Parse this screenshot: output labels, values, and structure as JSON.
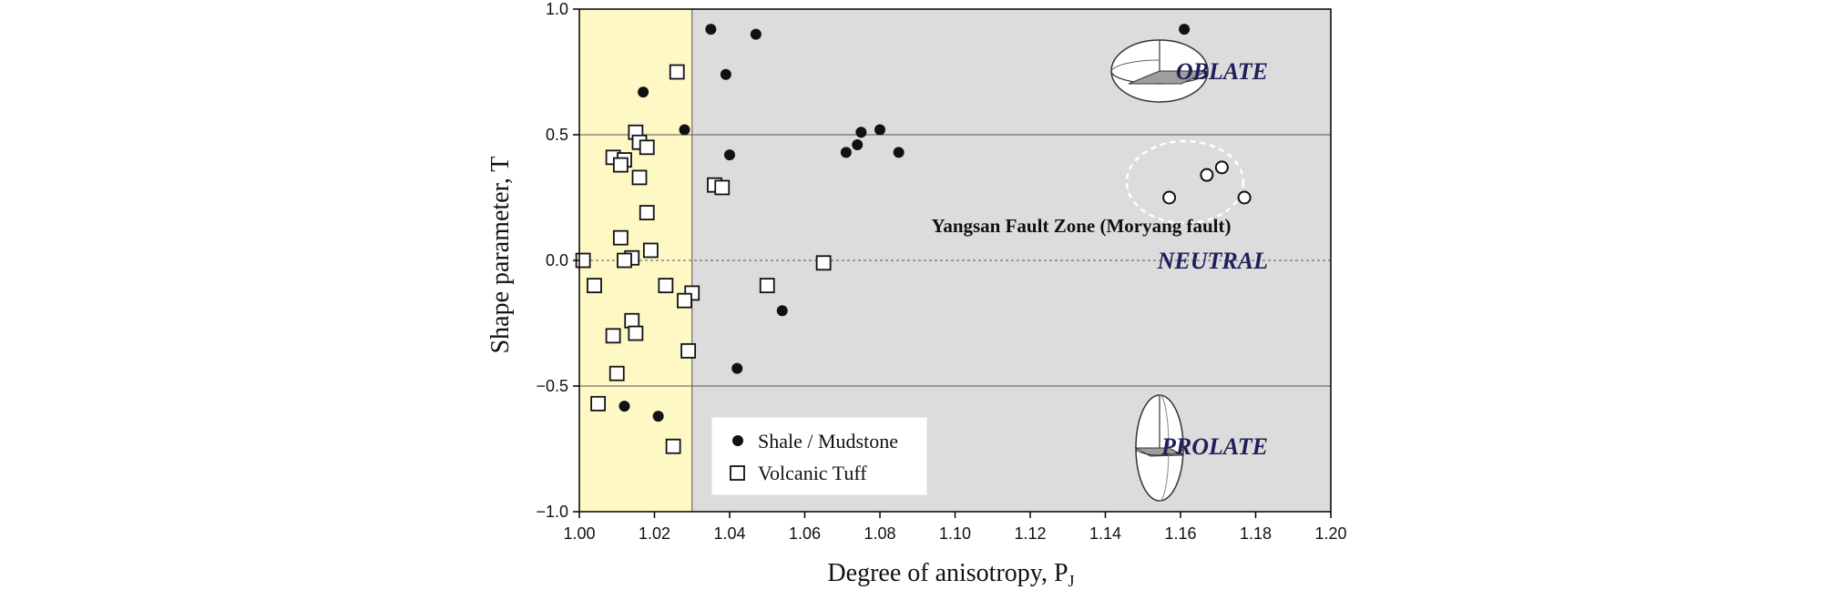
{
  "chart_data": {
    "type": "scatter",
    "xlabel": "Degree of anisotropy, P",
    "xlabel_sub": "J",
    "ylabel": "Shape parameter, T",
    "xlim": [
      1.0,
      1.2
    ],
    "ylim": [
      -1.0,
      1.0
    ],
    "x_ticks": [
      "1.00",
      "1.02",
      "1.04",
      "1.06",
      "1.08",
      "1.10",
      "1.12",
      "1.14",
      "1.16",
      "1.18",
      "1.20"
    ],
    "y_ticks": [
      "1.0",
      "0.5",
      "0.0",
      "−0.5",
      "−1.0"
    ],
    "y_tick_values": [
      1.0,
      0.5,
      0.0,
      -0.5,
      -1.0
    ],
    "highlight_band": {
      "x_from": 1.0,
      "x_to": 1.03,
      "color": "#fdf8c4"
    },
    "background_color": "#dcdcdc",
    "reference_lines": [
      {
        "y": 0.5,
        "style": "solid"
      },
      {
        "y": 0.0,
        "style": "dashed"
      },
      {
        "y": -0.5,
        "style": "solid"
      }
    ],
    "zone_labels": {
      "oblate": "OBLATE",
      "neutral": "NEUTRAL",
      "prolate": "PROLATE"
    },
    "annotation": "Yangsan Fault Zone (Moryang fault)",
    "legend_placement": "bottom-center",
    "series": [
      {
        "name": "Shale / Mudstone",
        "marker": "filled-circle",
        "points": [
          [
            1.035,
            0.92
          ],
          [
            1.047,
            0.9
          ],
          [
            1.039,
            0.74
          ],
          [
            1.017,
            0.67
          ],
          [
            1.028,
            0.52
          ],
          [
            1.04,
            0.42
          ],
          [
            1.071,
            0.43
          ],
          [
            1.074,
            0.46
          ],
          [
            1.075,
            0.51
          ],
          [
            1.08,
            0.52
          ],
          [
            1.085,
            0.43
          ],
          [
            1.161,
            0.92
          ],
          [
            1.054,
            -0.2
          ],
          [
            1.042,
            -0.43
          ],
          [
            1.012,
            -0.58
          ],
          [
            1.021,
            -0.62
          ]
        ]
      },
      {
        "name": "Volcanic Tuff",
        "marker": "open-square",
        "points": [
          [
            1.026,
            0.75
          ],
          [
            1.015,
            0.51
          ],
          [
            1.016,
            0.47
          ],
          [
            1.018,
            0.45
          ],
          [
            1.009,
            0.41
          ],
          [
            1.012,
            0.4
          ],
          [
            1.011,
            0.38
          ],
          [
            1.016,
            0.33
          ],
          [
            1.036,
            0.3
          ],
          [
            1.038,
            0.29
          ],
          [
            1.018,
            0.19
          ],
          [
            1.011,
            0.09
          ],
          [
            1.019,
            0.04
          ],
          [
            1.014,
            0.01
          ],
          [
            1.012,
            0.0
          ],
          [
            1.001,
            0.0
          ],
          [
            1.065,
            -0.01
          ],
          [
            1.004,
            -0.1
          ],
          [
            1.023,
            -0.1
          ],
          [
            1.05,
            -0.1
          ],
          [
            1.03,
            -0.13
          ],
          [
            1.028,
            -0.16
          ],
          [
            1.014,
            -0.24
          ],
          [
            1.015,
            -0.29
          ],
          [
            1.009,
            -0.3
          ],
          [
            1.029,
            -0.36
          ],
          [
            1.01,
            -0.45
          ],
          [
            1.005,
            -0.57
          ],
          [
            1.025,
            -0.74
          ]
        ]
      },
      {
        "name": "Yangsan Fault Zone (Moryang fault)",
        "marker": "open-circle",
        "points": [
          [
            1.157,
            0.25
          ],
          [
            1.167,
            0.34
          ],
          [
            1.171,
            0.37
          ],
          [
            1.177,
            0.25
          ]
        ]
      }
    ]
  }
}
